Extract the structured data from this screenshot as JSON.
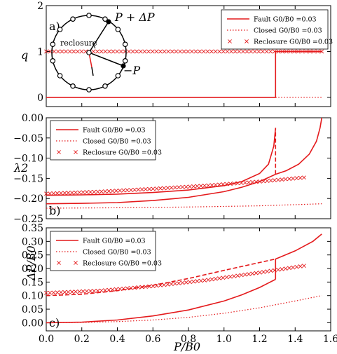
{
  "chart_data": [
    {
      "type": "line",
      "panel_label": "a)",
      "ylabel": "q",
      "xlim": [
        0.0,
        1.6
      ],
      "ylim": [
        -0.2,
        2.0
      ],
      "yticks": [
        "0",
        "1",
        "2"
      ],
      "yticks_v": [
        0,
        1,
        2
      ],
      "legend": [
        "Fault G0/B0 =0.03",
        "Closed G0/B0 =0.03",
        "Reclosure G0/B0 =0.03"
      ],
      "series": [
        {
          "name": "Fault G0/B0 =0.03",
          "style": "solid",
          "x": [
            0.0,
            1.29,
            1.29,
            1.55
          ],
          "y": [
            0,
            0,
            1,
            1
          ]
        },
        {
          "name": "Closed G0/B0 =0.03",
          "style": "dotted",
          "x": [
            1.29,
            1.55
          ],
          "y": [
            0,
            0
          ]
        },
        {
          "name": "Reclosure G0/B0 =0.03",
          "style": "x-markers",
          "x": [
            0.0,
            1.55
          ],
          "y": [
            1,
            1
          ]
        }
      ],
      "inset": {
        "annotations": [
          "P + ΔP",
          "reclosure",
          "−P"
        ],
        "node_count": 14
      }
    },
    {
      "type": "line",
      "panel_label": "b)",
      "ylabel": "λ2",
      "xlim": [
        0.0,
        1.6
      ],
      "ylim": [
        -0.25,
        0.0
      ],
      "yticks": [
        "−0.25",
        "−0.20",
        "−0.15",
        "−0.10",
        "−0.05",
        "0.00"
      ],
      "yticks_v": [
        -0.25,
        -0.2,
        -0.15,
        -0.1,
        -0.05,
        0.0
      ],
      "legend": [
        "Fault G0/B0 =0.03",
        "Closed G0/B0 =0.03",
        "Reclosure G0/B0 =0.03"
      ],
      "series": [
        {
          "name": "Fault G0/B0 =0.03",
          "style": "solid",
          "x": [
            0.0,
            0.2,
            0.4,
            0.6,
            0.8,
            1.0,
            1.1,
            1.2,
            1.25,
            1.28,
            1.29
          ],
          "y": [
            -0.192,
            -0.191,
            -0.189,
            -0.185,
            -0.179,
            -0.168,
            -0.158,
            -0.138,
            -0.115,
            -0.07,
            -0.025
          ]
        },
        {
          "name": "Fault G0/B0 =0.03",
          "style": "solid",
          "x": [
            0.0,
            0.2,
            0.4,
            0.6,
            0.8,
            1.0,
            1.1,
            1.2,
            1.29,
            1.35,
            1.42,
            1.48,
            1.52,
            1.54,
            1.55
          ],
          "y": [
            -0.213,
            -0.212,
            -0.21,
            -0.205,
            -0.197,
            -0.183,
            -0.172,
            -0.158,
            -0.14,
            -0.131,
            -0.115,
            -0.09,
            -0.058,
            -0.025,
            0.0
          ]
        },
        {
          "name": "Fault G0/B0 =0.03",
          "style": "dashed",
          "x": [
            1.29,
            1.29
          ],
          "y": [
            -0.14,
            -0.025
          ]
        },
        {
          "name": "Closed G0/B0 =0.03",
          "style": "dotted",
          "x": [
            0.0,
            0.4,
            0.8,
            1.2,
            1.55
          ],
          "y": [
            -0.224,
            -0.223,
            -0.221,
            -0.218,
            -0.213
          ]
        },
        {
          "name": "Reclosure G0/B0 =0.03",
          "style": "x-markers",
          "x": [
            0.0,
            0.3,
            0.6,
            0.9,
            1.2,
            1.45
          ],
          "y": [
            -0.188,
            -0.183,
            -0.176,
            -0.168,
            -0.158,
            -0.148
          ]
        }
      ]
    },
    {
      "type": "line",
      "panel_label": "c)",
      "ylabel": "ΔP/B0",
      "xlabel": "P/B0",
      "xlim": [
        0.0,
        1.6
      ],
      "ylim": [
        -0.03,
        0.35
      ],
      "xticks": [
        "0.0",
        "0.2",
        "0.4",
        "0.6",
        "0.8",
        "1.0",
        "1.2",
        "1.4",
        "1.6"
      ],
      "xticks_v": [
        0.0,
        0.2,
        0.4,
        0.6,
        0.8,
        1.0,
        1.2,
        1.4,
        1.6
      ],
      "yticks": [
        "0.00",
        "0.05",
        "0.10",
        "0.15",
        "0.20",
        "0.25",
        "0.30",
        "0.35"
      ],
      "yticks_v": [
        0.0,
        0.05,
        0.1,
        0.15,
        0.2,
        0.25,
        0.3,
        0.35
      ],
      "legend": [
        "Fault G0/B0 =0.03",
        "Closed G0/B0 =0.03",
        "Reclosure G0/B0 =0.03"
      ],
      "series": [
        {
          "name": "Fault G0/B0 =0.03",
          "style": "solid",
          "x": [
            0.0,
            0.2,
            0.4,
            0.6,
            0.8,
            1.0,
            1.1,
            1.2,
            1.29
          ],
          "y": [
            0.0,
            0.002,
            0.01,
            0.025,
            0.047,
            0.08,
            0.103,
            0.13,
            0.16
          ]
        },
        {
          "name": "Fault G0/B0 =0.03",
          "style": "solid",
          "x": [
            1.29,
            1.29,
            1.4,
            1.5,
            1.55
          ],
          "y": [
            0.16,
            0.235,
            0.265,
            0.3,
            0.327
          ]
        },
        {
          "name": "Fault G0/B0 =0.03",
          "style": "dashed",
          "x": [
            0.0,
            0.2,
            0.4,
            0.6,
            0.8,
            1.0,
            1.2,
            1.29
          ],
          "y": [
            0.1,
            0.105,
            0.118,
            0.138,
            0.163,
            0.193,
            0.222,
            0.235
          ]
        },
        {
          "name": "Closed G0/B0 =0.03",
          "style": "dotted",
          "x": [
            0.0,
            0.2,
            0.4,
            0.6,
            0.8,
            1.0,
            1.2,
            1.4,
            1.55
          ],
          "y": [
            0.0,
            0.001,
            0.004,
            0.01,
            0.02,
            0.035,
            0.055,
            0.08,
            0.1
          ]
        },
        {
          "name": "Reclosure G0/B0 =0.03",
          "style": "x-markers",
          "x": [
            0.0,
            0.3,
            0.6,
            0.9,
            1.2,
            1.45
          ],
          "y": [
            0.11,
            0.118,
            0.135,
            0.157,
            0.185,
            0.21
          ]
        }
      ]
    }
  ],
  "colors": {
    "series": "#e41a1c",
    "axis": "#000000",
    "inset": "#000000"
  }
}
